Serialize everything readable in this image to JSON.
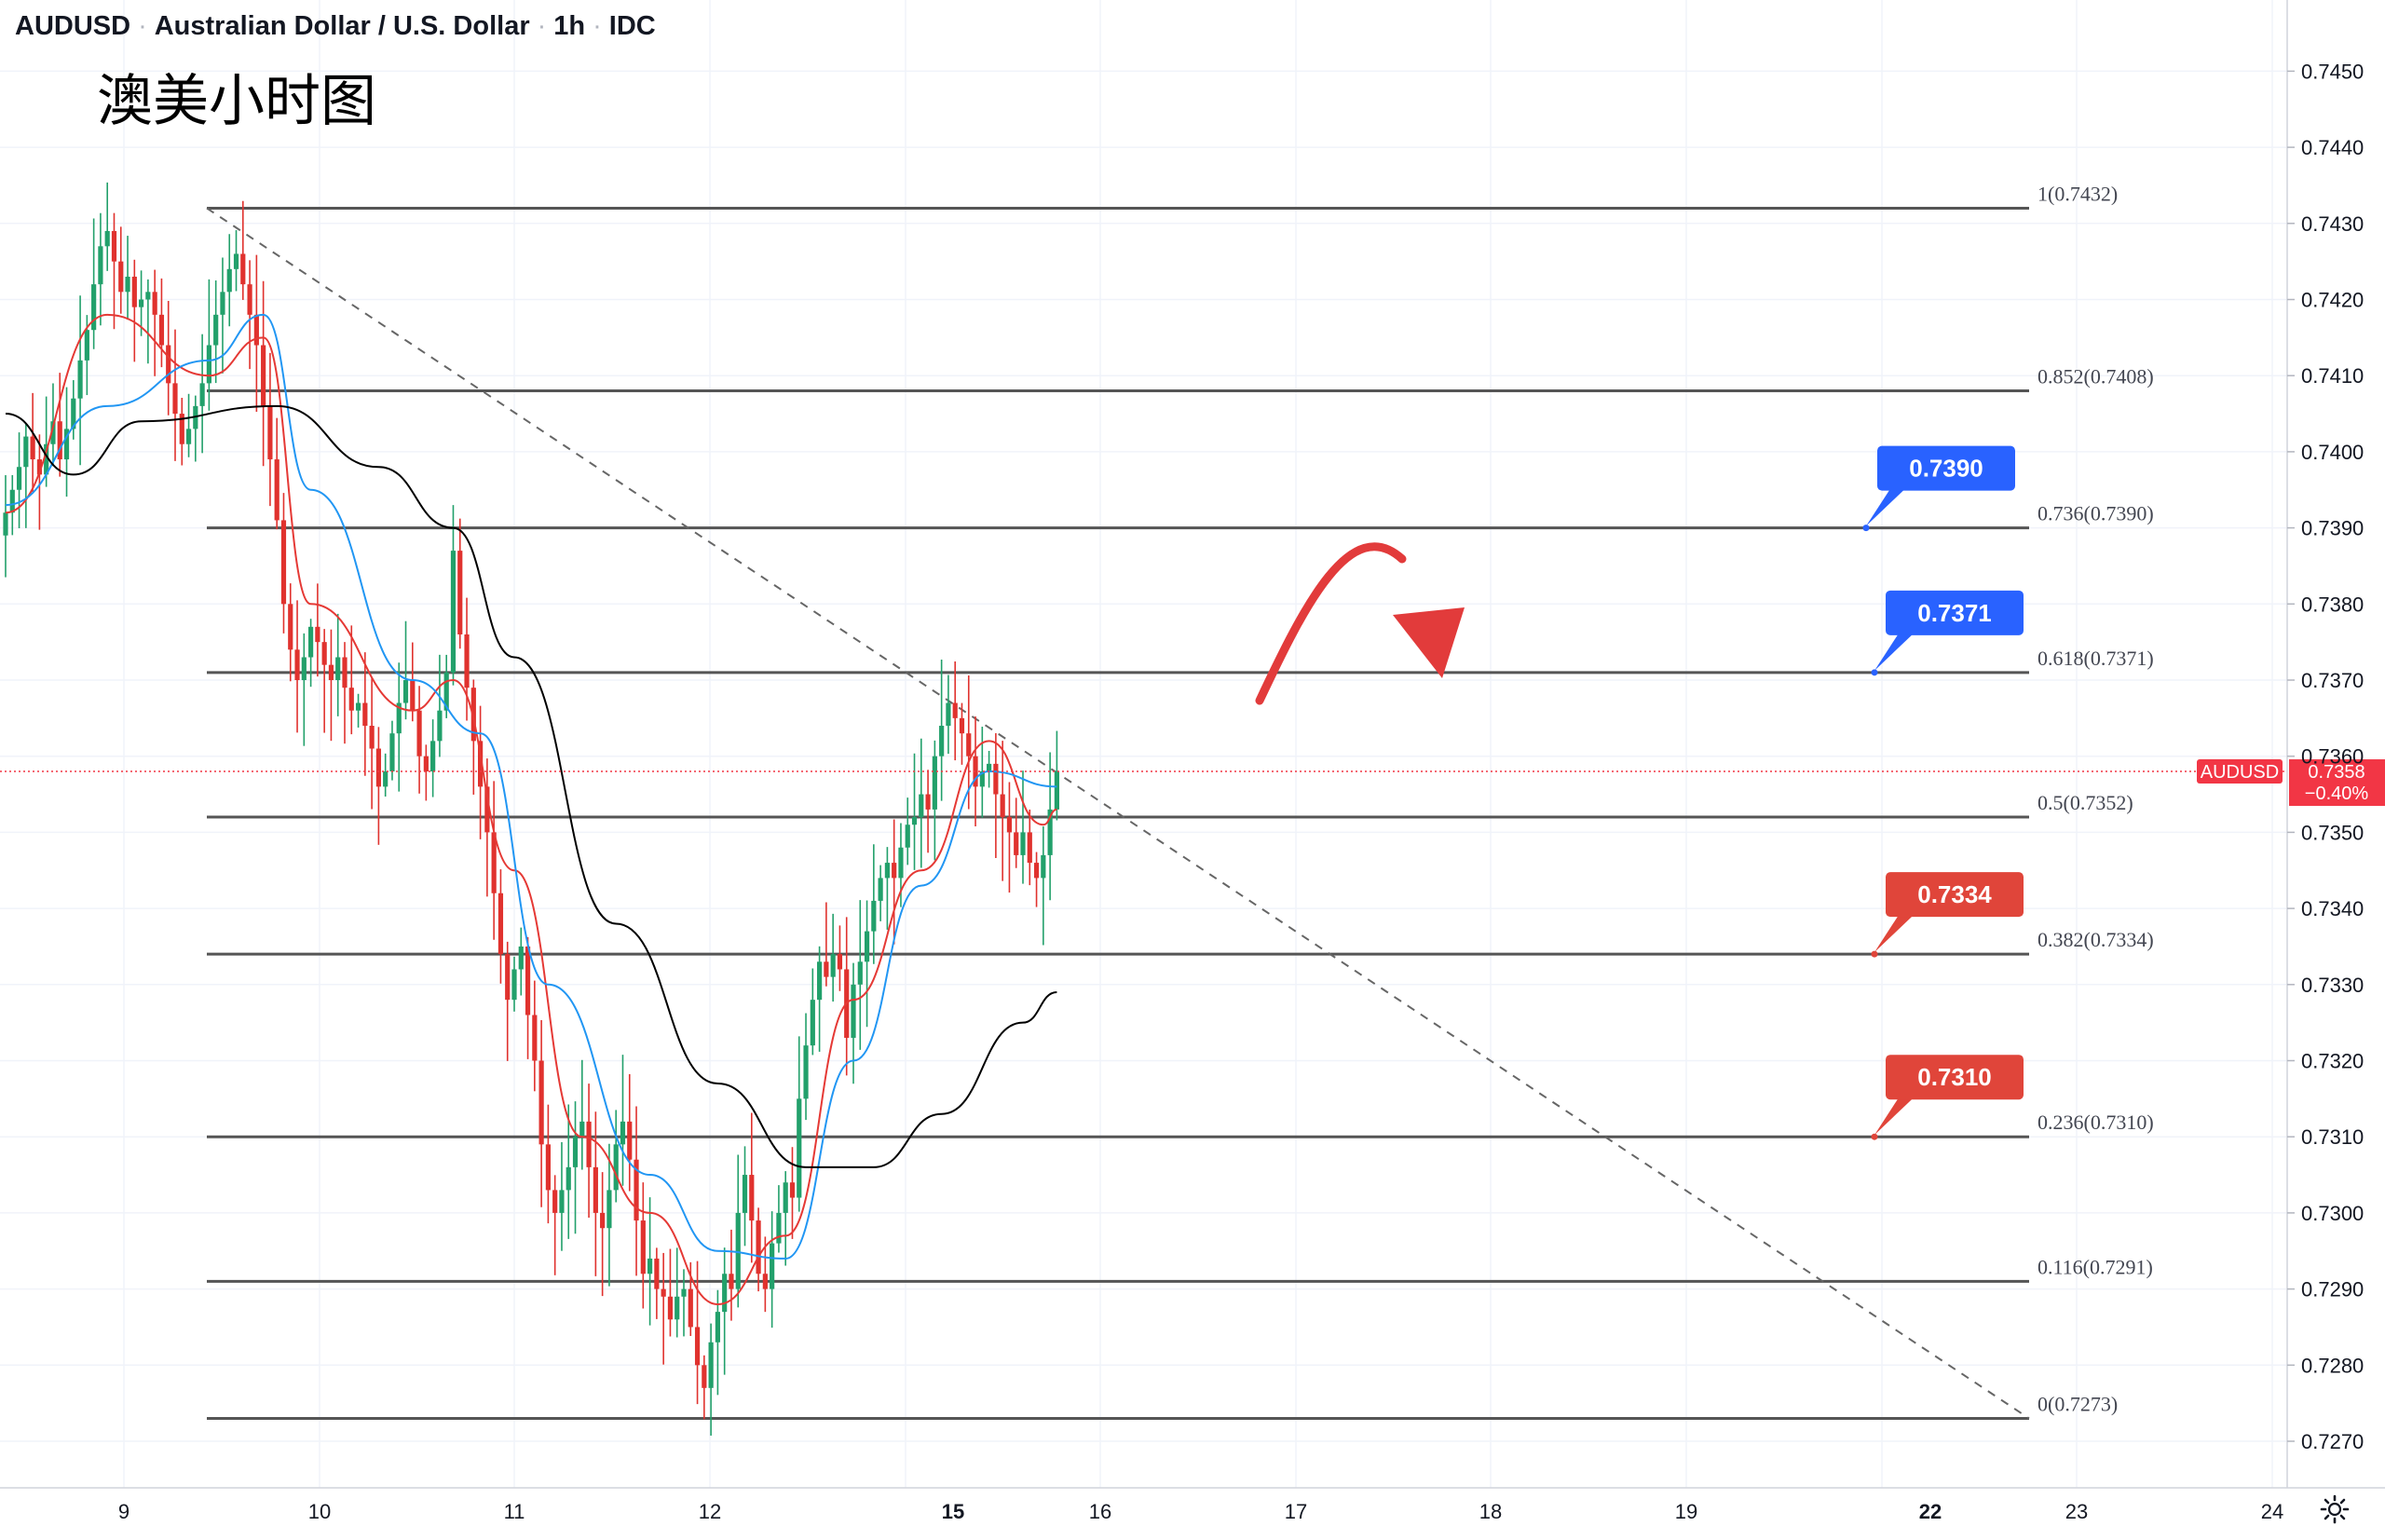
{
  "header": {
    "symbol": "AUDUSD",
    "name": "Australian Dollar / U.S. Dollar",
    "interval": "1h",
    "source": "IDC"
  },
  "annotation_title": "澳美小时图",
  "colors": {
    "up": "#22a06b",
    "down": "#e0322e",
    "ma_fast": "#e53935",
    "ma_mid": "#2196f3",
    "ma_slow": "#000000",
    "fib_line": "#555555",
    "tag_blue": "#2962ff",
    "tag_red": "#e0453a",
    "arrow": "#e23b3b",
    "price_line": "#f23645"
  },
  "symbol_badge": {
    "symbol": "AUDUSD",
    "price": "0.7358",
    "change": "−0.40%"
  },
  "chart_data": {
    "type": "candlestick",
    "title": "",
    "ylim": [
      0.7265,
      0.7455
    ],
    "x_ticks": [
      "9",
      "10",
      "11",
      "12",
      "15",
      "16",
      "17",
      "18",
      "19",
      "22",
      "23",
      "24"
    ],
    "x_tick_bold": [
      "15",
      "22"
    ],
    "y_ticks": [
      0.727,
      0.728,
      0.729,
      0.73,
      0.731,
      0.732,
      0.733,
      0.734,
      0.735,
      0.736,
      0.737,
      0.738,
      0.739,
      0.74,
      0.741,
      0.742,
      0.743,
      0.744,
      0.745
    ],
    "y_tick_labels": [
      "0.7270",
      "0.7280",
      "0.7290",
      "0.7300",
      "0.7310",
      "0.7320",
      "0.7330",
      "0.7340",
      "0.7350",
      "0.7360",
      "0.7370",
      "0.7380",
      "0.7390",
      "0.7400",
      "0.7410",
      "0.7420",
      "0.7430",
      "0.7440",
      "0.7450"
    ],
    "last_price": 0.7358,
    "closes": [
      0.7392,
      0.7395,
      0.7398,
      0.7402,
      0.7399,
      0.7397,
      0.7401,
      0.7404,
      0.7399,
      0.7403,
      0.7407,
      0.7412,
      0.7416,
      0.7422,
      0.7427,
      0.7429,
      0.7425,
      0.7421,
      0.7423,
      0.7419,
      0.742,
      0.7421,
      0.7418,
      0.7414,
      0.7409,
      0.7405,
      0.7401,
      0.7403,
      0.7406,
      0.7409,
      0.7414,
      0.7418,
      0.7421,
      0.7424,
      0.7426,
      0.7422,
      0.7418,
      0.7414,
      0.7406,
      0.7399,
      0.7391,
      0.738,
      0.7374,
      0.737,
      0.7373,
      0.7377,
      0.7375,
      0.7372,
      0.737,
      0.7373,
      0.7369,
      0.7366,
      0.7367,
      0.7364,
      0.7361,
      0.7356,
      0.7358,
      0.7363,
      0.7367,
      0.737,
      0.7366,
      0.736,
      0.7358,
      0.7362,
      0.7366,
      0.7371,
      0.7387,
      0.7376,
      0.7369,
      0.7362,
      0.7356,
      0.735,
      0.7342,
      0.7334,
      0.7328,
      0.7332,
      0.7335,
      0.7326,
      0.732,
      0.7309,
      0.7303,
      0.73,
      0.7303,
      0.7306,
      0.731,
      0.7312,
      0.7306,
      0.73,
      0.7298,
      0.7303,
      0.7309,
      0.7312,
      0.7307,
      0.7299,
      0.7292,
      0.7294,
      0.729,
      0.7289,
      0.7286,
      0.7289,
      0.729,
      0.7285,
      0.728,
      0.7277,
      0.7283,
      0.7287,
      0.7292,
      0.729,
      0.73,
      0.7305,
      0.7299,
      0.7292,
      0.729,
      0.7296,
      0.73,
      0.7304,
      0.7302,
      0.7315,
      0.7322,
      0.7328,
      0.7333,
      0.7331,
      0.7334,
      0.7332,
      0.7323,
      0.733,
      0.7333,
      0.7337,
      0.7341,
      0.7344,
      0.7346,
      0.7344,
      0.7348,
      0.7351,
      0.7352,
      0.7355,
      0.7353,
      0.736,
      0.7364,
      0.7367,
      0.7365,
      0.7363,
      0.736,
      0.7356,
      0.7358,
      0.7359,
      0.7355,
      0.7352,
      0.735,
      0.7347,
      0.735,
      0.7346,
      0.7344,
      0.7347,
      0.7353,
      0.7358
    ],
    "moving_averages": [
      {
        "color": "#e53935",
        "points": [
          [
            0,
            0.7392
          ],
          [
            15,
            0.7418
          ],
          [
            30,
            0.741
          ],
          [
            38,
            0.7415
          ],
          [
            45,
            0.738
          ],
          [
            60,
            0.7366
          ],
          [
            66,
            0.737
          ],
          [
            75,
            0.7345
          ],
          [
            85,
            0.731
          ],
          [
            95,
            0.73
          ],
          [
            105,
            0.7288
          ],
          [
            115,
            0.7297
          ],
          [
            125,
            0.7328
          ],
          [
            135,
            0.7345
          ],
          [
            145,
            0.7362
          ],
          [
            153,
            0.7351
          ],
          [
            155,
            0.7353
          ]
        ]
      },
      {
        "color": "#2196f3",
        "points": [
          [
            0,
            0.7393
          ],
          [
            15,
            0.7406
          ],
          [
            30,
            0.7412
          ],
          [
            38,
            0.7418
          ],
          [
            45,
            0.7395
          ],
          [
            60,
            0.737
          ],
          [
            70,
            0.7363
          ],
          [
            80,
            0.733
          ],
          [
            95,
            0.7305
          ],
          [
            105,
            0.7295
          ],
          [
            115,
            0.7294
          ],
          [
            125,
            0.732
          ],
          [
            135,
            0.7343
          ],
          [
            145,
            0.7358
          ],
          [
            155,
            0.7356
          ]
        ]
      },
      {
        "color": "#000000",
        "points": [
          [
            0,
            0.7405
          ],
          [
            10,
            0.7397
          ],
          [
            20,
            0.7404
          ],
          [
            40,
            0.7406
          ],
          [
            55,
            0.7398
          ],
          [
            66,
            0.739
          ],
          [
            75,
            0.7373
          ],
          [
            90,
            0.7338
          ],
          [
            105,
            0.7317
          ],
          [
            118,
            0.7306
          ],
          [
            128,
            0.7306
          ],
          [
            138,
            0.7313
          ],
          [
            150,
            0.7325
          ],
          [
            155,
            0.7329
          ]
        ]
      }
    ],
    "fibonacci_levels": [
      {
        "ratio": "1",
        "price": 0.7432,
        "label": "1(0.7432)"
      },
      {
        "ratio": "0.852",
        "price": 0.7408,
        "label": "0.852(0.7408)"
      },
      {
        "ratio": "0.736",
        "price": 0.739,
        "label": "0.736(0.7390)"
      },
      {
        "ratio": "0.618",
        "price": 0.7371,
        "label": "0.618(0.7371)"
      },
      {
        "ratio": "0.5",
        "price": 0.7352,
        "label": "0.5(0.7352)"
      },
      {
        "ratio": "0.382",
        "price": 0.7334,
        "label": "0.382(0.7334)"
      },
      {
        "ratio": "0.236",
        "price": 0.731,
        "label": "0.236(0.7310)"
      },
      {
        "ratio": "0.116",
        "price": 0.7291,
        "label": "0.116(0.7291)"
      },
      {
        "ratio": "0",
        "price": 0.7273,
        "label": "0(0.7273)"
      }
    ],
    "price_tags": [
      {
        "text": "0.7390",
        "price": 0.739,
        "color": "#2962ff"
      },
      {
        "text": "0.7371",
        "price": 0.7371,
        "color": "#2962ff"
      },
      {
        "text": "0.7334",
        "price": 0.7334,
        "color": "#e0453a"
      },
      {
        "text": "0.7310",
        "price": 0.731,
        "color": "#e0453a"
      }
    ]
  }
}
